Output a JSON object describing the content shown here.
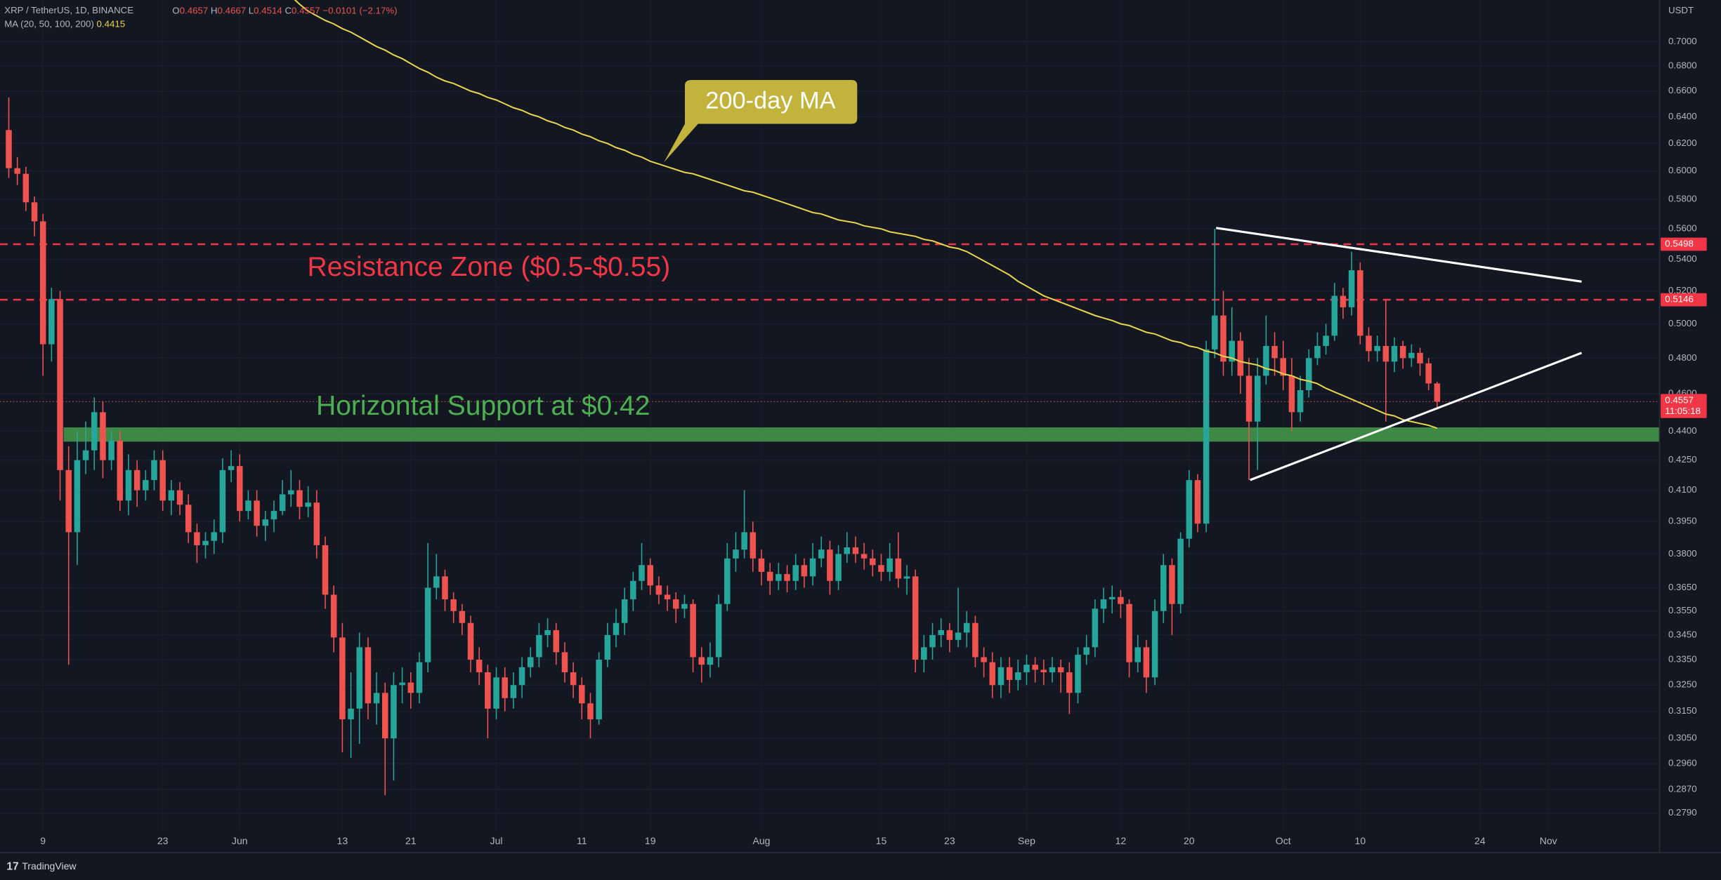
{
  "chart_data": {
    "type": "candlestick",
    "symbol": "XRP / TetherUS, 1D, BINANCE",
    "change": "−0.0101 (−2.17%)",
    "countdown": "11:05:18",
    "y_unit_label": "USDT",
    "log_scale": true,
    "grid": true,
    "up_color": "#26a69a",
    "down_color": "#ef5350",
    "ylim": [
      0.2732,
      0.7357
    ],
    "yticks": [
      {
        "value": 0.7,
        "label": "0.7000"
      },
      {
        "value": 0.68,
        "label": "0.6800"
      },
      {
        "value": 0.66,
        "label": "0.6600"
      },
      {
        "value": 0.64,
        "label": "0.6400"
      },
      {
        "value": 0.62,
        "label": "0.6200"
      },
      {
        "value": 0.6,
        "label": "0.6000"
      },
      {
        "value": 0.58,
        "label": "0.5800"
      },
      {
        "value": 0.56,
        "label": "0.5600"
      },
      {
        "value": 0.54,
        "label": "0.5400"
      },
      {
        "value": 0.52,
        "label": "0.5200"
      },
      {
        "value": 0.5,
        "label": "0.5000"
      },
      {
        "value": 0.48,
        "label": "0.4800"
      },
      {
        "value": 0.46,
        "label": "0.4600"
      },
      {
        "value": 0.44,
        "label": "0.4400"
      },
      {
        "value": 0.425,
        "label": "0.4250"
      },
      {
        "value": 0.41,
        "label": "0.4100"
      },
      {
        "value": 0.395,
        "label": "0.3950"
      },
      {
        "value": 0.38,
        "label": "0.3800"
      },
      {
        "value": 0.365,
        "label": "0.3650"
      },
      {
        "value": 0.355,
        "label": "0.3550"
      },
      {
        "value": 0.345,
        "label": "0.3450"
      },
      {
        "value": 0.335,
        "label": "0.3350"
      },
      {
        "value": 0.325,
        "label": "0.3250"
      },
      {
        "value": 0.315,
        "label": "0.3150"
      },
      {
        "value": 0.305,
        "label": "0.3050"
      },
      {
        "value": 0.296,
        "label": "0.2960"
      },
      {
        "value": 0.287,
        "label": "0.2870"
      },
      {
        "value": 0.279,
        "label": "0.2790"
      }
    ],
    "categories": [
      null,
      null,
      null,
      null,
      "9",
      null,
      null,
      null,
      null,
      null,
      null,
      null,
      null,
      null,
      null,
      null,
      null,
      null,
      "23",
      null,
      null,
      null,
      null,
      null,
      null,
      null,
      null,
      "Jun",
      null,
      null,
      null,
      null,
      null,
      null,
      null,
      null,
      null,
      null,
      null,
      "13",
      null,
      null,
      null,
      null,
      null,
      null,
      null,
      "21",
      null,
      null,
      null,
      null,
      null,
      null,
      null,
      null,
      null,
      "Jul",
      null,
      null,
      null,
      null,
      null,
      null,
      null,
      null,
      null,
      "11",
      null,
      null,
      null,
      null,
      null,
      null,
      null,
      "19",
      null,
      null,
      null,
      null,
      null,
      null,
      null,
      null,
      null,
      null,
      null,
      null,
      "Aug",
      null,
      null,
      null,
      null,
      null,
      null,
      null,
      null,
      null,
      null,
      null,
      null,
      null,
      "15",
      null,
      null,
      null,
      null,
      null,
      null,
      null,
      "23",
      null,
      null,
      null,
      null,
      null,
      null,
      null,
      null,
      "Sep",
      null,
      null,
      null,
      null,
      null,
      null,
      null,
      null,
      null,
      null,
      "12",
      null,
      null,
      null,
      null,
      null,
      null,
      null,
      "20",
      null,
      null,
      null,
      null,
      null,
      null,
      null,
      null,
      null,
      null,
      "Oct",
      null,
      null,
      null,
      null,
      null,
      null,
      null,
      null,
      "10",
      null,
      null,
      null,
      null,
      null,
      null,
      null,
      null,
      null,
      null,
      null,
      null,
      null,
      "24",
      null,
      null,
      null,
      null,
      null,
      null,
      null,
      "Nov",
      null,
      null,
      null,
      null,
      null,
      null,
      null,
      null,
      null,
      null,
      null,
      null,
      null
    ],
    "open": [
      0.63,
      0.602,
      0.598,
      0.578,
      0.565,
      0.488,
      0.515,
      0.42,
      0.39,
      0.425,
      0.43,
      0.45,
      0.425,
      0.435,
      0.405,
      0.42,
      0.41,
      0.415,
      0.425,
      0.405,
      0.41,
      0.403,
      0.39,
      0.384,
      0.386,
      0.39,
      0.42,
      0.422,
      0.4,
      0.405,
      0.393,
      0.396,
      0.4,
      0.408,
      0.41,
      0.402,
      0.404,
      0.384,
      0.362,
      0.344,
      0.312,
      0.316,
      0.34,
      0.318,
      0.322,
      0.305,
      0.325,
      0.326,
      0.322,
      0.334,
      0.365,
      0.37,
      0.36,
      0.355,
      0.35,
      0.335,
      0.33,
      0.316,
      0.328,
      0.32,
      0.325,
      0.332,
      0.336,
      0.345,
      0.347,
      0.338,
      0.33,
      0.325,
      0.318,
      0.312,
      0.335,
      0.345,
      0.35,
      0.36,
      0.368,
      0.375,
      0.366,
      0.362,
      0.36,
      0.356,
      0.358,
      0.336,
      0.333,
      0.336,
      0.358,
      0.378,
      0.382,
      0.39,
      0.378,
      0.372,
      0.368,
      0.371,
      0.368,
      0.375,
      0.37,
      0.378,
      0.382,
      0.368,
      0.38,
      0.383,
      0.38,
      0.378,
      0.375,
      0.372,
      0.378,
      0.369,
      0.37,
      0.335,
      0.34,
      0.345,
      0.347,
      0.343,
      0.346,
      0.35,
      0.336,
      0.334,
      0.325,
      0.332,
      0.327,
      0.33,
      0.333,
      0.331,
      0.33,
      0.332,
      0.33,
      0.322,
      0.337,
      0.34,
      0.356,
      0.36,
      0.361,
      0.358,
      0.334,
      0.34,
      0.328,
      0.355,
      0.375,
      0.358,
      0.387,
      0.415,
      0.394,
      0.485,
      0.505,
      0.478,
      0.49,
      0.47,
      0.445,
      0.47,
      0.487,
      0.48,
      0.47,
      0.45,
      0.462,
      0.48,
      0.487,
      0.493,
      0.517,
      0.51,
      0.533,
      0.493,
      0.484,
      0.487,
      0.478,
      0.487,
      0.48,
      0.483,
      0.477,
      0.4657,
      null,
      null,
      null,
      null,
      null,
      null,
      null,
      null,
      null,
      null,
      null,
      null,
      null,
      null,
      null,
      null,
      null,
      null,
      null,
      null,
      null,
      null,
      null,
      null,
      null,
      null
    ],
    "high": [
      0.655,
      0.61,
      0.603,
      0.582,
      0.57,
      0.522,
      0.52,
      0.432,
      0.44,
      0.445,
      0.458,
      0.456,
      0.44,
      0.44,
      0.428,
      0.425,
      0.42,
      0.43,
      0.43,
      0.415,
      0.414,
      0.408,
      0.394,
      0.39,
      0.396,
      0.426,
      0.43,
      0.428,
      0.41,
      0.41,
      0.4,
      0.405,
      0.415,
      0.42,
      0.415,
      0.412,
      0.41,
      0.388,
      0.366,
      0.35,
      0.33,
      0.346,
      0.344,
      0.33,
      0.326,
      0.33,
      0.332,
      0.33,
      0.338,
      0.385,
      0.38,
      0.373,
      0.363,
      0.358,
      0.353,
      0.34,
      0.333,
      0.332,
      0.332,
      0.33,
      0.336,
      0.34,
      0.35,
      0.352,
      0.35,
      0.342,
      0.334,
      0.328,
      0.322,
      0.338,
      0.35,
      0.356,
      0.365,
      0.372,
      0.385,
      0.378,
      0.37,
      0.366,
      0.363,
      0.362,
      0.36,
      0.34,
      0.342,
      0.362,
      0.385,
      0.39,
      0.41,
      0.395,
      0.382,
      0.376,
      0.376,
      0.375,
      0.38,
      0.378,
      0.385,
      0.388,
      0.386,
      0.384,
      0.39,
      0.388,
      0.385,
      0.382,
      0.38,
      0.385,
      0.39,
      0.375,
      0.373,
      0.345,
      0.35,
      0.352,
      0.35,
      0.365,
      0.355,
      0.353,
      0.34,
      0.338,
      0.336,
      0.336,
      0.335,
      0.337,
      0.336,
      0.335,
      0.336,
      0.335,
      0.334,
      0.34,
      0.345,
      0.36,
      0.365,
      0.366,
      0.364,
      0.36,
      0.345,
      0.343,
      0.36,
      0.38,
      0.378,
      0.39,
      0.42,
      0.418,
      0.49,
      0.56,
      0.52,
      0.51,
      0.495,
      0.48,
      0.48,
      0.505,
      0.495,
      0.49,
      0.48,
      0.47,
      0.485,
      0.495,
      0.5,
      0.525,
      0.522,
      0.545,
      0.538,
      0.498,
      0.493,
      0.515,
      0.492,
      0.49,
      0.488,
      0.486,
      0.48,
      0.4667,
      null,
      null,
      null,
      null,
      null,
      null,
      null,
      null,
      null,
      null,
      null,
      null,
      null,
      null,
      null,
      null,
      null,
      null,
      null,
      null,
      null,
      null,
      null,
      null,
      null,
      null
    ],
    "low": [
      0.595,
      0.59,
      0.572,
      0.555,
      0.47,
      0.478,
      0.405,
      0.333,
      0.375,
      0.418,
      0.42,
      0.416,
      0.42,
      0.4,
      0.398,
      0.402,
      0.405,
      0.41,
      0.4,
      0.398,
      0.398,
      0.385,
      0.376,
      0.378,
      0.38,
      0.385,
      0.414,
      0.395,
      0.396,
      0.388,
      0.386,
      0.39,
      0.398,
      0.402,
      0.396,
      0.397,
      0.378,
      0.356,
      0.338,
      0.3,
      0.298,
      0.303,
      0.312,
      0.31,
      0.285,
      0.29,
      0.318,
      0.316,
      0.318,
      0.33,
      0.36,
      0.355,
      0.35,
      0.345,
      0.33,
      0.325,
      0.305,
      0.312,
      0.315,
      0.316,
      0.32,
      0.328,
      0.332,
      0.34,
      0.333,
      0.326,
      0.32,
      0.312,
      0.305,
      0.31,
      0.332,
      0.34,
      0.345,
      0.355,
      0.364,
      0.362,
      0.358,
      0.355,
      0.35,
      0.352,
      0.33,
      0.326,
      0.328,
      0.332,
      0.355,
      0.372,
      0.378,
      0.372,
      0.366,
      0.362,
      0.364,
      0.363,
      0.364,
      0.365,
      0.366,
      0.374,
      0.362,
      0.364,
      0.376,
      0.376,
      0.373,
      0.37,
      0.368,
      0.368,
      0.365,
      0.362,
      0.33,
      0.33,
      0.335,
      0.34,
      0.338,
      0.34,
      0.34,
      0.332,
      0.328,
      0.32,
      0.32,
      0.322,
      0.323,
      0.325,
      0.326,
      0.325,
      0.326,
      0.322,
      0.314,
      0.318,
      0.333,
      0.336,
      0.35,
      0.354,
      0.352,
      0.328,
      0.33,
      0.322,
      0.325,
      0.35,
      0.345,
      0.354,
      0.383,
      0.39,
      0.39,
      0.48,
      0.47,
      0.47,
      0.46,
      0.415,
      0.42,
      0.465,
      0.47,
      0.462,
      0.44,
      0.445,
      0.458,
      0.476,
      0.482,
      0.49,
      0.503,
      0.505,
      0.488,
      0.478,
      0.478,
      0.445,
      0.472,
      0.474,
      0.475,
      0.47,
      0.462,
      0.4514,
      null,
      null,
      null,
      null,
      null,
      null,
      null,
      null,
      null,
      null,
      null,
      null,
      null,
      null,
      null,
      null,
      null,
      null,
      null,
      null,
      null,
      null,
      null,
      null,
      null,
      null
    ],
    "close": [
      0.602,
      0.598,
      0.578,
      0.565,
      0.488,
      0.515,
      0.42,
      0.39,
      0.425,
      0.43,
      0.45,
      0.425,
      0.435,
      0.405,
      0.42,
      0.41,
      0.415,
      0.425,
      0.405,
      0.41,
      0.403,
      0.39,
      0.384,
      0.386,
      0.39,
      0.42,
      0.422,
      0.4,
      0.405,
      0.393,
      0.396,
      0.4,
      0.408,
      0.41,
      0.402,
      0.404,
      0.384,
      0.362,
      0.344,
      0.312,
      0.316,
      0.34,
      0.318,
      0.322,
      0.305,
      0.325,
      0.326,
      0.322,
      0.334,
      0.365,
      0.37,
      0.36,
      0.355,
      0.35,
      0.335,
      0.33,
      0.316,
      0.328,
      0.32,
      0.325,
      0.332,
      0.336,
      0.345,
      0.347,
      0.338,
      0.33,
      0.325,
      0.318,
      0.312,
      0.335,
      0.345,
      0.35,
      0.36,
      0.368,
      0.375,
      0.366,
      0.362,
      0.36,
      0.356,
      0.358,
      0.336,
      0.333,
      0.336,
      0.358,
      0.378,
      0.382,
      0.39,
      0.378,
      0.372,
      0.368,
      0.371,
      0.368,
      0.375,
      0.37,
      0.378,
      0.382,
      0.368,
      0.38,
      0.383,
      0.38,
      0.378,
      0.375,
      0.372,
      0.378,
      0.369,
      0.37,
      0.335,
      0.34,
      0.345,
      0.347,
      0.343,
      0.346,
      0.35,
      0.336,
      0.334,
      0.325,
      0.332,
      0.327,
      0.33,
      0.333,
      0.331,
      0.33,
      0.332,
      0.33,
      0.322,
      0.337,
      0.34,
      0.356,
      0.36,
      0.361,
      0.358,
      0.334,
      0.34,
      0.328,
      0.355,
      0.375,
      0.358,
      0.387,
      0.415,
      0.394,
      0.485,
      0.505,
      0.478,
      0.49,
      0.47,
      0.445,
      0.47,
      0.487,
      0.48,
      0.47,
      0.45,
      0.462,
      0.48,
      0.487,
      0.493,
      0.517,
      0.51,
      0.533,
      0.493,
      0.484,
      0.487,
      0.478,
      0.487,
      0.48,
      0.483,
      0.477,
      0.4657,
      0.4557,
      null,
      null,
      null,
      null,
      null,
      null,
      null,
      null,
      null,
      null,
      null,
      null,
      null,
      null,
      null,
      null,
      null,
      null,
      null,
      null,
      null,
      null,
      null,
      null,
      null,
      null
    ],
    "moving_average": {
      "name": "MA (20, 50, 100, 200)",
      "color": "#e8d44d",
      "values": [
        null,
        null,
        null,
        null,
        null,
        null,
        null,
        null,
        null,
        null,
        null,
        null,
        null,
        null,
        null,
        null,
        null,
        null,
        null,
        null,
        null,
        null,
        null,
        null,
        null,
        null,
        null,
        null,
        null,
        null,
        null,
        null,
        0.745,
        0.739,
        0.732,
        0.726,
        0.722,
        0.718,
        0.715,
        0.711,
        0.708,
        0.704,
        0.7,
        0.696,
        0.693,
        0.689,
        0.686,
        0.682,
        0.678,
        0.675,
        0.671,
        0.668,
        0.666,
        0.663,
        0.66,
        0.658,
        0.655,
        0.653,
        0.65,
        0.647,
        0.645,
        0.642,
        0.64,
        0.637,
        0.635,
        0.632,
        0.63,
        0.627,
        0.625,
        0.622,
        0.62,
        0.617,
        0.615,
        0.612,
        0.61,
        0.607,
        0.605,
        0.603,
        0.601,
        0.599,
        0.598,
        0.596,
        0.594,
        0.592,
        0.59,
        0.588,
        0.586,
        0.585,
        0.583,
        0.581,
        0.579,
        0.577,
        0.575,
        0.573,
        0.571,
        0.57,
        0.568,
        0.566,
        0.565,
        0.564,
        0.562,
        0.561,
        0.56,
        0.558,
        0.557,
        0.556,
        0.555,
        0.553,
        0.552,
        0.55,
        0.548,
        0.547,
        0.545,
        0.542,
        0.539,
        0.536,
        0.533,
        0.53,
        0.526,
        0.523,
        0.52,
        0.517,
        0.515,
        0.513,
        0.511,
        0.509,
        0.507,
        0.505,
        0.5035,
        0.502,
        0.5,
        0.499,
        0.497,
        0.495,
        0.494,
        0.492,
        0.49,
        0.489,
        0.487,
        0.486,
        0.484,
        0.483,
        0.481,
        0.48,
        0.478,
        0.477,
        0.476,
        0.474,
        0.473,
        0.471,
        0.47,
        0.468,
        0.467,
        0.4656,
        0.463,
        0.461,
        0.459,
        0.457,
        0.455,
        0.453,
        0.451,
        0.449,
        0.448,
        0.446,
        0.445,
        0.444,
        0.443,
        0.4415,
        null,
        null,
        null,
        null,
        null,
        null,
        null,
        null,
        null,
        null,
        null,
        null,
        null,
        null,
        null,
        null,
        null,
        null,
        null,
        null,
        null,
        null,
        null,
        null,
        null,
        null
      ]
    },
    "price_lines": [
      {
        "value": 0.5498,
        "color": "#f23645"
      },
      {
        "value": 0.5146,
        "color": "#f23645"
      }
    ],
    "annotations": [
      {
        "text": "Resistance Zone ($0.5-$0.55)",
        "color": "#f23645"
      },
      {
        "text": "Horizontal Support at $0.42",
        "color": "#4caf50"
      },
      {
        "text": "200-day MA",
        "color": "#c2b33c"
      }
    ],
    "watermark": "TradingView"
  }
}
